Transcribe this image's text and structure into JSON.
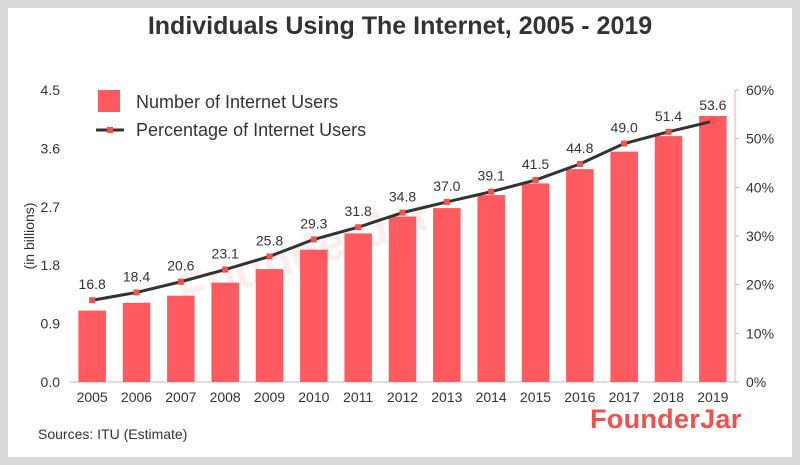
{
  "title": "Individuals Using The Internet, 2005 - 2019",
  "source": "Sources: ITU (Estimate)",
  "brand": "FounderJar",
  "watermark": "FounderJar",
  "colors": {
    "bar": "#ff5a5f",
    "line": "#333333",
    "marker": "#f2504b",
    "text": "#333333",
    "frame": "#d9d9d9"
  },
  "chart_data": {
    "type": "bar",
    "categories": [
      "2005",
      "2006",
      "2007",
      "2008",
      "2009",
      "2010",
      "2011",
      "2012",
      "2013",
      "2014",
      "2015",
      "2016",
      "2017",
      "2018",
      "2019"
    ],
    "series": [
      {
        "name": "Number of Internet Users",
        "type": "bar",
        "axis": "left",
        "values": [
          1.1,
          1.22,
          1.33,
          1.53,
          1.74,
          2.04,
          2.29,
          2.55,
          2.68,
          2.88,
          3.06,
          3.28,
          3.55,
          3.79,
          4.1
        ]
      },
      {
        "name": "Percentage of Internet Users",
        "type": "line",
        "axis": "right",
        "values": [
          16.8,
          18.4,
          20.6,
          23.1,
          25.8,
          29.3,
          31.8,
          34.8,
          37.0,
          39.1,
          41.5,
          44.8,
          49.0,
          51.4,
          53.6
        ],
        "labels": [
          "16.8",
          "18.4",
          "20.6",
          "23.1",
          "25.8",
          "29.3",
          "31.8",
          "34.8",
          "37.0",
          "39.1",
          "41.5",
          "44.8",
          "49.0",
          "51.4",
          "53.6"
        ]
      }
    ],
    "ylabel": "(in billions)",
    "ylim": [
      0,
      4.5
    ],
    "yticks": [
      "0.0",
      "0.9",
      "1.8",
      "2.7",
      "3.6",
      "4.5"
    ],
    "y2lim": [
      0,
      60
    ],
    "y2ticks": [
      "0%",
      "10%",
      "20%",
      "30%",
      "40%",
      "50%",
      "60%"
    ],
    "legend_position": "top-left",
    "grid": false
  }
}
